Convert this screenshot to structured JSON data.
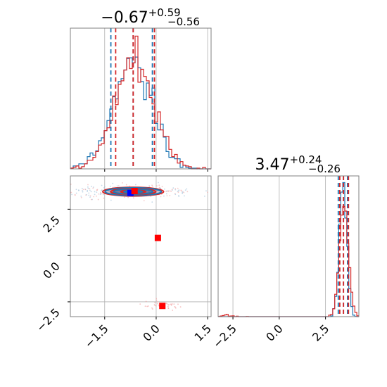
{
  "chart_data": {
    "type": "corner",
    "parameters": [
      {
        "title": {
          "value": "−0.67",
          "plus": "+0.59",
          "minus": "−0.56"
        },
        "median": -0.67,
        "plus": 0.59,
        "minus": 0.56,
        "ticks": [
          "−1.5",
          "0.0",
          "1.5"
        ],
        "tick_values": [
          -1.5,
          0.0,
          1.5
        ],
        "range": [
          -2.5,
          1.6
        ]
      },
      {
        "title": {
          "value": "3.47",
          "plus": "+0.24",
          "minus": "−0.26"
        },
        "median": 3.47,
        "plus": 0.24,
        "minus": 0.26,
        "ticks": [
          "−2.5",
          "0.0",
          "2.5"
        ],
        "tick_values": [
          -2.5,
          0.0,
          2.5
        ],
        "range": [
          -3.3,
          4.3
        ]
      }
    ],
    "series": [
      {
        "color": "#1f77b4",
        "p1_quantiles": [
          -1.32,
          -0.67,
          -0.11
        ],
        "p2_quantiles": [
          3.19,
          3.47,
          3.69
        ],
        "truth_markers": [
          {
            "x": -0.75,
            "y": 3.38
          }
        ]
      },
      {
        "color": "#d62728",
        "p1_quantiles": [
          -1.18,
          -0.67,
          -0.05
        ],
        "p2_quantiles": [
          3.27,
          3.47,
          3.74
        ],
        "truth_markers": [
          {
            "x": -0.63,
            "y": 3.48
          },
          {
            "x": 0.05,
            "y": 0.95
          },
          {
            "x": 0.18,
            "y": -2.72
          }
        ]
      }
    ],
    "truth_marker_colors": [
      "#0000ff",
      "#ff0000"
    ],
    "grid": true
  }
}
